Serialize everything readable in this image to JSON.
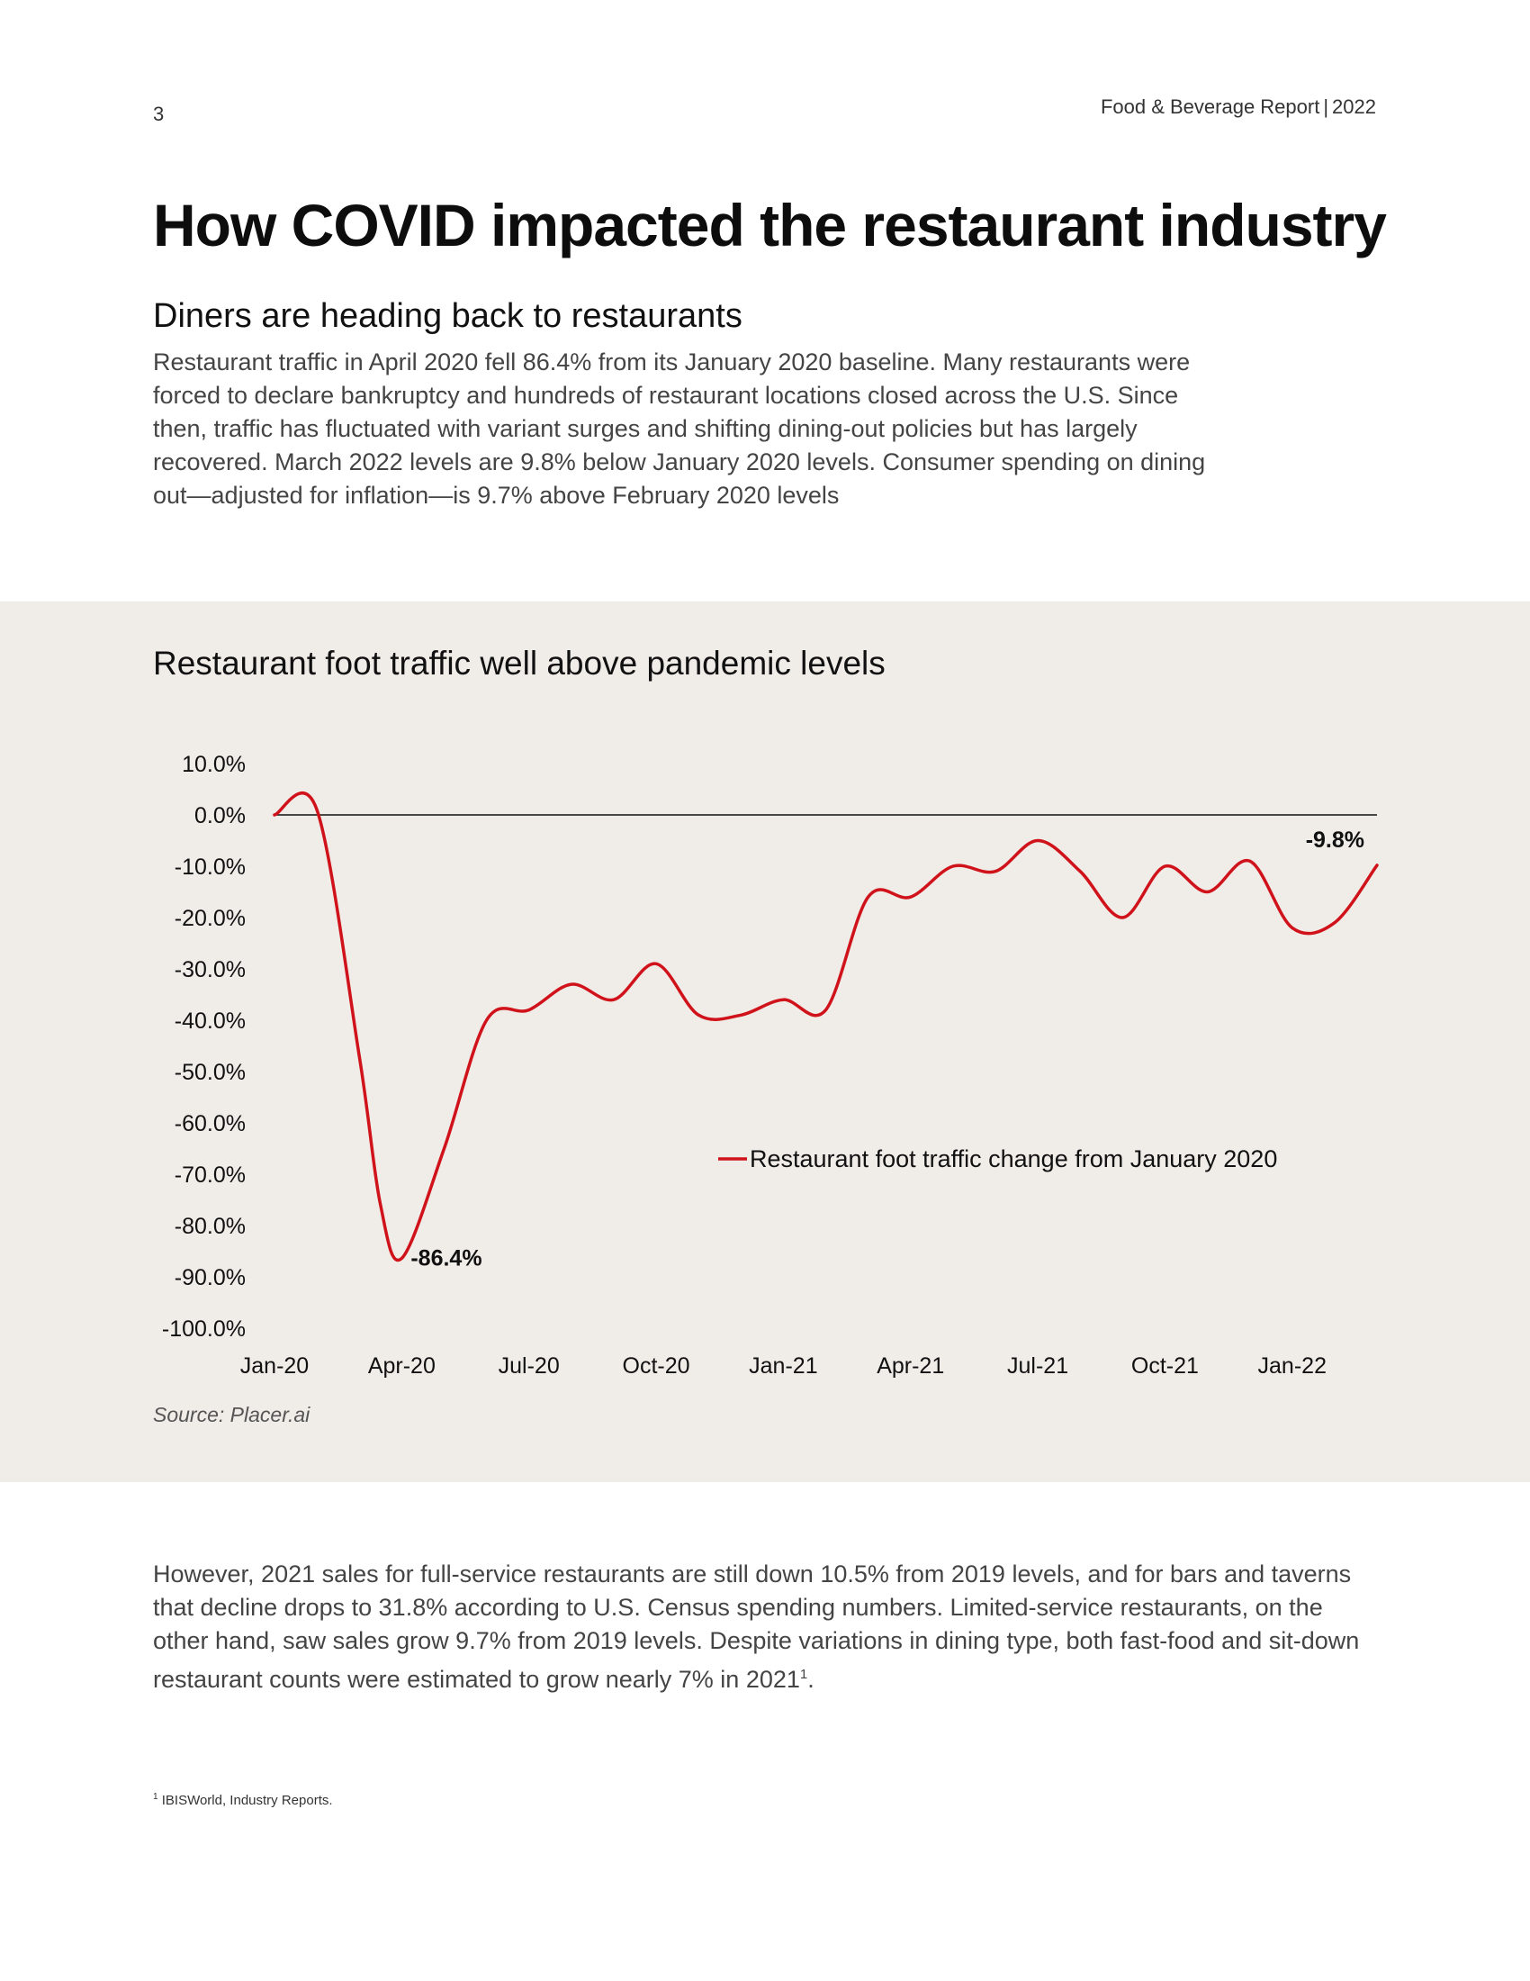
{
  "header": {
    "page_number": "3",
    "report_name": "Food & Beverage Report",
    "separator": "|",
    "year": "2022"
  },
  "title": "How COVID impacted the restaurant industry",
  "section_heading": "Diners are heading back to restaurants",
  "intro_paragraph": "Restaurant traffic in April 2020 fell 86.4% from its January 2020 baseline. Many restaurants were forced to declare bankruptcy and hundreds of restaurant locations closed across the U.S. Since then, traffic has fluctuated with variant surges and shifting dining-out policies but has largely recovered. March 2022 levels are 9.8% below January 2020 levels. Consumer spending on dining out—adjusted for inflation—is 9.7% above February 2020 levels",
  "chart": {
    "source": "Source: Placer.ai"
  },
  "chart_data": {
    "type": "line",
    "title": "Restaurant foot traffic well above pandemic levels",
    "xlabel": "",
    "ylabel": "",
    "ylim": [
      -100,
      10
    ],
    "yticks": [
      "10.0%",
      "0.0%",
      "-10.0%",
      "-20.0%",
      "-30.0%",
      "-40.0%",
      "-50.0%",
      "-60.0%",
      "-70.0%",
      "-80.0%",
      "-90.0%",
      "-100.0%"
    ],
    "ytick_values": [
      10,
      0,
      -10,
      -20,
      -30,
      -40,
      -50,
      -60,
      -70,
      -80,
      -90,
      -100
    ],
    "xticks": [
      "Jan-20",
      "Apr-20",
      "Jul-20",
      "Oct-20",
      "Jan-21",
      "Apr-21",
      "Jul-21",
      "Oct-21",
      "Jan-22"
    ],
    "xtick_values": [
      0,
      3,
      6,
      9,
      12,
      15,
      18,
      21,
      24
    ],
    "series": [
      {
        "name": "Restaurant foot traffic change from January 2020",
        "color": "#d0121b",
        "x": [
          0,
          1,
          2,
          2.5,
          3,
          4,
          5,
          6,
          7,
          8,
          9,
          10,
          11,
          12,
          13,
          14,
          15,
          16,
          17,
          18,
          19,
          20,
          21,
          22,
          23,
          24,
          25,
          26
        ],
        "values": [
          0,
          1,
          -47,
          -76,
          -86.4,
          -65,
          -40,
          -38,
          -33,
          -36,
          -29,
          -39,
          -39,
          -36,
          -38,
          -16,
          -16,
          -10,
          -11,
          -5,
          -11,
          -20,
          -10,
          -15,
          -9,
          -22,
          -21,
          -9.8
        ]
      }
    ],
    "annotations": [
      {
        "x": 3,
        "y": -86.4,
        "text": "-86.4%"
      },
      {
        "x": 26,
        "y": -9.8,
        "text": "-9.8%"
      }
    ],
    "legend": "center-right",
    "grid": false
  },
  "closing_paragraph": {
    "text": "However, 2021 sales for full-service restaurants are still down 10.5% from 2019 levels, and for bars and taverns that decline drops to 31.8% according to U.S. Census spending numbers. Limited-service restaurants, on the other hand, saw sales grow 9.7% from 2019 levels. Despite variations in dining type, both fast-food and sit-down restaurant counts were estimated to grow nearly 7% in 2021",
    "footnote_ref": "1",
    "end_punct": "."
  },
  "footnote": {
    "marker": "1",
    "text": " IBISWorld, Industry Reports."
  }
}
